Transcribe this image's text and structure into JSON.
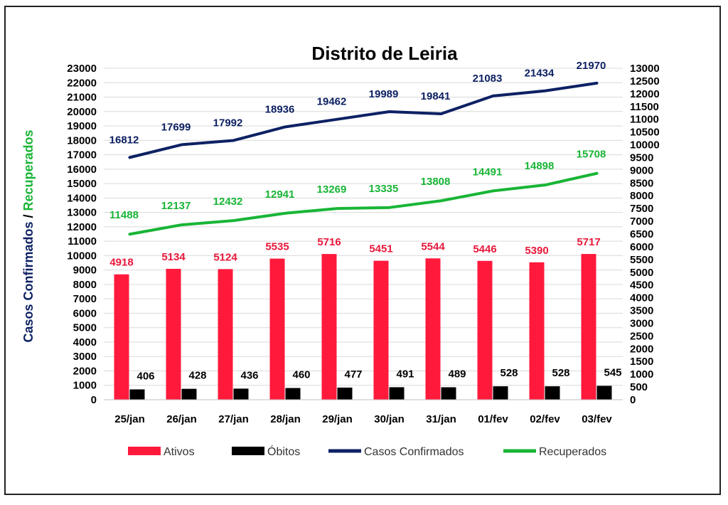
{
  "chart_data": {
    "type": "bar",
    "title": "Distrito de Leiria",
    "categories": [
      "25/jan",
      "26/jan",
      "27/jan",
      "28/jan",
      "29/jan",
      "30/jan",
      "31/jan",
      "01/fev",
      "02/fev",
      "03/fev"
    ],
    "ylabel_left_part1": "Casos Confirmados",
    "ylabel_left_sep": " / ",
    "ylabel_left_part2": "Recuperados",
    "y_left_range": [
      0,
      23000
    ],
    "y_left_step": 1000,
    "y_right_range": [
      0,
      13000
    ],
    "y_right_step": 500,
    "grid": true,
    "legend_position": "bottom",
    "series": [
      {
        "name": "Ativos",
        "type": "bar",
        "axis": "right",
        "color": "#ff1a3c",
        "label_color": "#e8173a",
        "values": [
          4918,
          5134,
          5124,
          5535,
          5716,
          5451,
          5544,
          5446,
          5390,
          5717
        ]
      },
      {
        "name": "Óbitos",
        "type": "bar",
        "axis": "right",
        "color": "#000000",
        "label_color": "#000000",
        "values": [
          406,
          428,
          436,
          460,
          477,
          491,
          489,
          528,
          528,
          545
        ]
      },
      {
        "name": "Casos Confirmados",
        "type": "line",
        "axis": "left",
        "color": "#0d2163",
        "label_color": "#0d2163",
        "values": [
          16812,
          17699,
          17992,
          18936,
          19462,
          19989,
          19841,
          21083,
          21434,
          21970
        ]
      },
      {
        "name": "Recuperados",
        "type": "line",
        "axis": "left",
        "color": "#18b536",
        "label_color": "#18b536",
        "values": [
          11488,
          12137,
          12432,
          12941,
          13269,
          13335,
          13808,
          14491,
          14898,
          15708
        ]
      }
    ]
  }
}
